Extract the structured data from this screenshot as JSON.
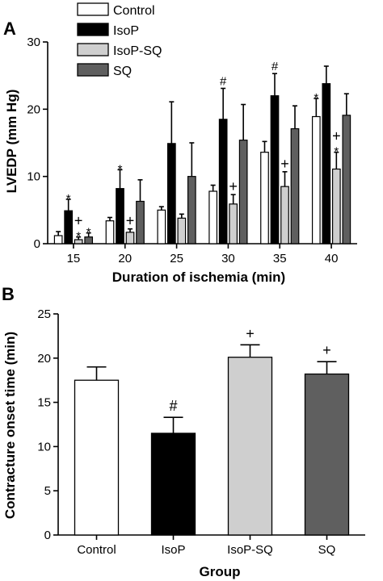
{
  "panels": {
    "a": {
      "letter": "A"
    },
    "b": {
      "letter": "B"
    }
  },
  "colors": {
    "Control": "#ffffff",
    "IsoP": "#000000",
    "IsoP-SQ": "#cfcfcf",
    "SQ": "#5f5f5f",
    "stroke": "#000000"
  },
  "chart_data": [
    {
      "type": "bar",
      "panel": "A",
      "title": "",
      "xlabel": "Duration of ischemia (min)",
      "ylabel": "LVEDP (mm Hg)",
      "ylim": [
        0,
        30
      ],
      "yticks": [
        0,
        10,
        20,
        30
      ],
      "categories": [
        "15",
        "20",
        "25",
        "30",
        "35",
        "40"
      ],
      "legend_position": "top-left",
      "series": [
        {
          "name": "Control",
          "values": [
            1.2,
            3.4,
            5.0,
            7.8,
            13.6,
            18.9
          ],
          "errors": [
            0.6,
            0.5,
            0.5,
            0.9,
            1.6,
            2.7
          ],
          "annotations": [
            "",
            "",
            "",
            "",
            "",
            "*"
          ]
        },
        {
          "name": "IsoP",
          "values": [
            4.9,
            8.2,
            14.9,
            18.5,
            22.0,
            23.8
          ],
          "errors": [
            1.7,
            2.8,
            6.2,
            4.6,
            3.3,
            2.6
          ],
          "annotations": [
            "*",
            "*",
            "",
            "#",
            "#",
            ""
          ]
        },
        {
          "name": "IsoP-SQ",
          "values": [
            0.6,
            1.7,
            3.8,
            5.9,
            8.5,
            11.1
          ],
          "errors": [
            0.4,
            0.5,
            0.6,
            1.4,
            2.2,
            2.5
          ],
          "annotations": [
            "+\n*",
            "+",
            "",
            "+",
            "+",
            "+\n*"
          ]
        },
        {
          "name": "SQ",
          "values": [
            1.0,
            6.3,
            10.0,
            15.4,
            17.1,
            19.1
          ],
          "errors": [
            0.6,
            3.2,
            5.0,
            5.3,
            3.4,
            3.2
          ],
          "annotations": [
            "*",
            "",
            "",
            "",
            "",
            ""
          ]
        }
      ]
    },
    {
      "type": "bar",
      "panel": "B",
      "title": "",
      "xlabel": "Group",
      "ylabel": "Contracture onset time (min)",
      "ylim": [
        0,
        25
      ],
      "yticks": [
        0,
        5,
        10,
        15,
        20,
        25
      ],
      "categories": [
        "Control",
        "IsoP",
        "IsoP-SQ",
        "SQ"
      ],
      "values": [
        17.5,
        11.5,
        20.1,
        18.2
      ],
      "errors": [
        1.5,
        1.8,
        1.4,
        1.4
      ],
      "annotations": [
        "",
        "#",
        "+",
        "+"
      ]
    }
  ]
}
